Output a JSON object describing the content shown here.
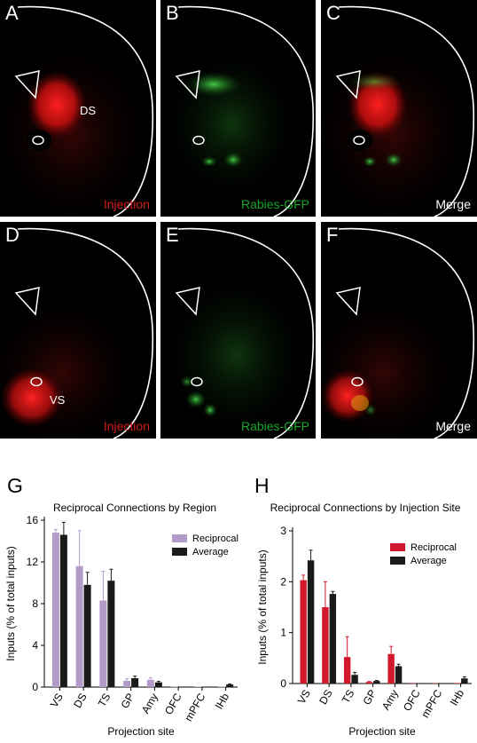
{
  "panels": [
    {
      "letter": "A",
      "caption": "Injection",
      "region": "DS",
      "caption_color": "#d81b1b"
    },
    {
      "letter": "B",
      "caption": "Rabies-GFP",
      "caption_color": "#18a82a"
    },
    {
      "letter": "C",
      "caption": "Merge",
      "caption_color": "#ffffff"
    },
    {
      "letter": "D",
      "caption": "Injection",
      "region": "VS",
      "caption_color": "#d81b1b"
    },
    {
      "letter": "E",
      "caption": "Rabies-GFP",
      "caption_color": "#18a82a"
    },
    {
      "letter": "F",
      "caption": "Merge",
      "caption_color": "#ffffff"
    }
  ],
  "chart_data": [
    {
      "letter": "G",
      "type": "bar",
      "title": "Reciprocal Connections by Region",
      "xlabel": "Projection site",
      "ylabel": "Inputs (% of total inputs)",
      "categories": [
        "VS",
        "DS",
        "TS",
        "GP",
        "Amy",
        "OFC",
        "mPFC",
        "lHb"
      ],
      "ylim": [
        0,
        16
      ],
      "yticks": [
        0,
        4,
        8,
        12,
        16
      ],
      "series": [
        {
          "name": "Reciprocal",
          "color": "#b39bc8",
          "values": [
            14.8,
            11.6,
            8.3,
            0.6,
            0.7,
            0.05,
            0.05,
            0.05
          ],
          "errors": [
            0.3,
            3.4,
            2.8,
            0.2,
            0.2,
            0.0,
            0.0,
            0.0
          ]
        },
        {
          "name": "Average",
          "color": "#1a1a1a",
          "values": [
            14.6,
            9.8,
            10.2,
            0.85,
            0.45,
            0.05,
            0.05,
            0.25
          ],
          "errors": [
            1.2,
            1.2,
            1.1,
            0.2,
            0.1,
            0.0,
            0.0,
            0.05
          ]
        }
      ]
    },
    {
      "letter": "H",
      "type": "bar",
      "title": "Reciprocal Connections by Injection Site",
      "xlabel": "Projection site",
      "ylabel": "Inputs (% of total inputs)",
      "categories": [
        "VS",
        "DS",
        "TS",
        "GP",
        "Amy",
        "OFC",
        "mPFC",
        "lHb"
      ],
      "ylim": [
        0,
        3
      ],
      "yticks": [
        0,
        1,
        2,
        3
      ],
      "series": [
        {
          "name": "Reciprocal",
          "color": "#d2192b",
          "values": [
            2.03,
            1.5,
            0.52,
            0.03,
            0.58,
            0.01,
            0.01,
            0.01
          ],
          "errors": [
            0.1,
            0.5,
            0.4,
            0.01,
            0.15,
            0.0,
            0.0,
            0.0
          ]
        },
        {
          "name": "Average",
          "color": "#1a1a1a",
          "values": [
            2.42,
            1.76,
            0.17,
            0.05,
            0.34,
            0.01,
            0.01,
            0.1
          ],
          "errors": [
            0.2,
            0.05,
            0.05,
            0.01,
            0.04,
            0.0,
            0.0,
            0.03
          ]
        }
      ]
    }
  ]
}
